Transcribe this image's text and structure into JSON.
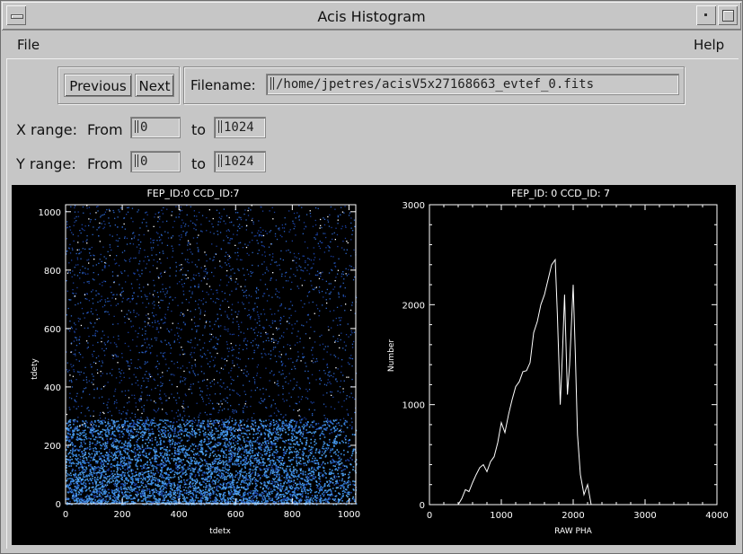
{
  "window": {
    "title": "Acis Histogram"
  },
  "menubar": {
    "file": "File",
    "help": "Help"
  },
  "nav": {
    "previous": "Previous",
    "next": "Next"
  },
  "file": {
    "label": "Filename:",
    "value": "/home/jpetres/acisV5x27168663_evtef_0.fits"
  },
  "xrange": {
    "label": "X range:",
    "from_label": "From",
    "from": "0",
    "to_label": "to",
    "to": "1024"
  },
  "yrange": {
    "label": "Y range:",
    "from_label": "From",
    "from": "0",
    "to_label": "to",
    "to": "1024"
  },
  "icons": {
    "window_menu": "window-menu-icon",
    "minimize": "minimize-icon",
    "maximize": "maximize-icon"
  },
  "colors": {
    "plot_bg": "#000000",
    "event_dense": "#3a8be0",
    "event_sparse": "#1a3fa0",
    "line": "#ffffff"
  },
  "chart_data": [
    {
      "type": "scatter",
      "title": "FEP_ID:0   CCD_ID:7",
      "xlabel": "tdetx",
      "ylabel": "tdety",
      "xlim": [
        0,
        1024
      ],
      "ylim": [
        0,
        1024
      ],
      "x_ticks": [
        "0",
        "200",
        "400",
        "600",
        "800",
        "1000"
      ],
      "y_ticks": [
        "0",
        "200",
        "400",
        "600",
        "800",
        "1000"
      ],
      "density_note": "dense events below tdety ~280, sparse above"
    },
    {
      "type": "line",
      "title": "FEP_ID:  0   CCD_ID:  7",
      "xlabel": "RAW PHA",
      "ylabel": "Number",
      "xlim": [
        0,
        4000
      ],
      "ylim": [
        0,
        3000
      ],
      "x_ticks": [
        "0",
        "1000",
        "2000",
        "3000",
        "4000"
      ],
      "y_ticks": [
        "0",
        "1000",
        "2000",
        "3000"
      ],
      "x": [
        400,
        450,
        500,
        550,
        600,
        650,
        700,
        750,
        800,
        850,
        900,
        950,
        1000,
        1050,
        1100,
        1150,
        1200,
        1250,
        1300,
        1350,
        1400,
        1450,
        1500,
        1550,
        1600,
        1650,
        1700,
        1750,
        1780,
        1820,
        1850,
        1880,
        1920,
        1950,
        2000,
        2030,
        2060,
        2100,
        2150,
        2200,
        2250
      ],
      "y": [
        0,
        60,
        150,
        130,
        220,
        300,
        370,
        400,
        330,
        430,
        480,
        620,
        820,
        720,
        900,
        1050,
        1180,
        1230,
        1330,
        1340,
        1420,
        1720,
        1830,
        2000,
        2100,
        2250,
        2400,
        2450,
        1900,
        1000,
        1500,
        2100,
        1100,
        1400,
        2200,
        1500,
        700,
        300,
        100,
        200,
        0
      ]
    }
  ]
}
